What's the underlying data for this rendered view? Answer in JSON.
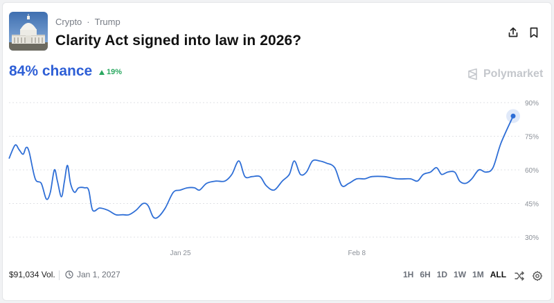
{
  "market": {
    "category": "Crypto",
    "subcategory": "Trump",
    "title": "Clarity Act signed into law in 2026?",
    "thumbnail_icon": "capitol-building-icon"
  },
  "header_actions": {
    "share_icon": "share-icon",
    "bookmark_icon": "bookmark-icon"
  },
  "probability": {
    "chance_text": "84% chance",
    "change_text": "19%",
    "change_direction": "up",
    "accent_color": "#2e5fd6",
    "change_color": "#2aa860"
  },
  "brand": {
    "name": "Polymarket"
  },
  "footer": {
    "volume": "$91,034 Vol.",
    "end_date": "Jan 1, 2027",
    "ranges": [
      "1H",
      "6H",
      "1D",
      "1W",
      "1M",
      "ALL"
    ],
    "active_range": "ALL"
  },
  "chart_data": {
    "type": "line",
    "title": "",
    "xlabel": "",
    "ylabel": "",
    "x_tick_labels": [
      "Jan 25",
      "Feb 8"
    ],
    "x_tick_positions": [
      0.34,
      0.69
    ],
    "y_ticks": [
      90,
      75,
      60,
      45,
      30
    ],
    "y_tick_labels": [
      "90%",
      "75%",
      "60%",
      "45%",
      "30%"
    ],
    "ylim": [
      27,
      97
    ],
    "grid": true,
    "line_color": "#2e6ed6",
    "series": [
      {
        "values": [
          [
            0.0,
            65
          ],
          [
            0.012,
            71
          ],
          [
            0.02,
            69
          ],
          [
            0.028,
            67
          ],
          [
            0.034,
            70
          ],
          [
            0.04,
            68
          ],
          [
            0.052,
            56
          ],
          [
            0.064,
            54
          ],
          [
            0.074,
            47
          ],
          [
            0.082,
            50
          ],
          [
            0.09,
            60
          ],
          [
            0.096,
            55
          ],
          [
            0.104,
            48
          ],
          [
            0.11,
            55
          ],
          [
            0.116,
            62
          ],
          [
            0.122,
            54
          ],
          [
            0.13,
            50
          ],
          [
            0.138,
            52
          ],
          [
            0.15,
            52
          ],
          [
            0.158,
            51
          ],
          [
            0.166,
            42
          ],
          [
            0.18,
            43
          ],
          [
            0.196,
            42
          ],
          [
            0.212,
            40
          ],
          [
            0.226,
            40
          ],
          [
            0.238,
            40
          ],
          [
            0.252,
            42
          ],
          [
            0.266,
            45
          ],
          [
            0.276,
            44
          ],
          [
            0.286,
            39
          ],
          [
            0.296,
            39
          ],
          [
            0.31,
            43
          ],
          [
            0.326,
            50
          ],
          [
            0.34,
            51
          ],
          [
            0.354,
            52
          ],
          [
            0.368,
            52
          ],
          [
            0.378,
            51
          ],
          [
            0.392,
            54
          ],
          [
            0.41,
            55
          ],
          [
            0.428,
            55
          ],
          [
            0.442,
            58
          ],
          [
            0.456,
            64
          ],
          [
            0.468,
            57
          ],
          [
            0.482,
            57
          ],
          [
            0.498,
            57
          ],
          [
            0.51,
            53
          ],
          [
            0.526,
            51
          ],
          [
            0.542,
            55
          ],
          [
            0.556,
            58
          ],
          [
            0.566,
            64
          ],
          [
            0.578,
            58
          ],
          [
            0.59,
            59
          ],
          [
            0.602,
            64
          ],
          [
            0.616,
            64
          ],
          [
            0.63,
            63
          ],
          [
            0.646,
            61
          ],
          [
            0.66,
            53
          ],
          [
            0.674,
            54
          ],
          [
            0.69,
            56
          ],
          [
            0.706,
            56
          ],
          [
            0.72,
            57
          ],
          [
            0.744,
            57
          ],
          [
            0.77,
            56
          ],
          [
            0.796,
            56
          ],
          [
            0.81,
            55
          ],
          [
            0.822,
            58
          ],
          [
            0.836,
            59
          ],
          [
            0.848,
            61
          ],
          [
            0.858,
            58
          ],
          [
            0.87,
            59
          ],
          [
            0.884,
            59
          ],
          [
            0.894,
            55
          ],
          [
            0.906,
            54
          ],
          [
            0.918,
            56
          ],
          [
            0.932,
            60
          ],
          [
            0.946,
            59
          ],
          [
            0.96,
            61
          ],
          [
            0.976,
            72
          ],
          [
            1.0,
            84
          ]
        ]
      }
    ]
  }
}
